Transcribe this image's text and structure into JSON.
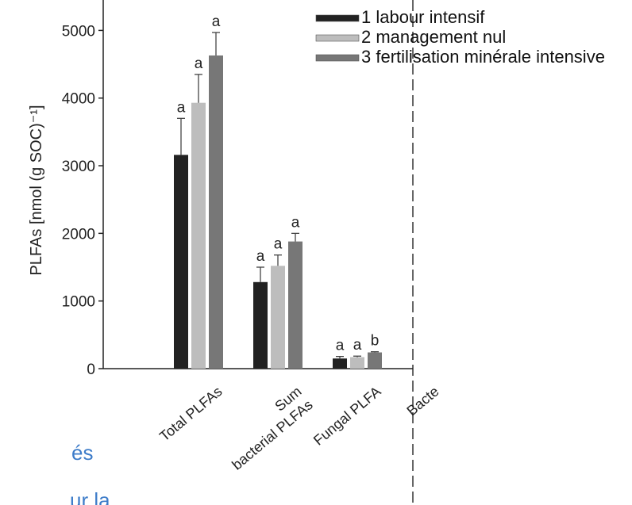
{
  "chart_data": {
    "type": "bar",
    "ylabel": "PLFAs [nmol (g SOC)⁻¹]",
    "categories": [
      [
        "Total PLFAs"
      ],
      [
        "Sum",
        "bacterial PLFAs"
      ],
      [
        "Fungal PLFA"
      ]
    ],
    "series": [
      {
        "name": "1 labour intensif",
        "color": "#222222",
        "values": [
          3160,
          1280,
          150
        ],
        "errors": [
          540,
          220,
          30
        ],
        "letters": [
          "a",
          "a",
          "a"
        ]
      },
      {
        "name": "2 management nul",
        "color": "#bdbdbd",
        "values": [
          3930,
          1520,
          170
        ],
        "errors": [
          420,
          160,
          15
        ],
        "letters": [
          "a",
          "a",
          "a"
        ]
      },
      {
        "name": "3 fertilisation minérale intensive",
        "color": "#777777",
        "values": [
          4630,
          1880,
          240
        ],
        "errors": [
          340,
          120,
          10
        ],
        "letters": [
          "a",
          "a",
          "b"
        ]
      }
    ],
    "ylim": [
      0,
      5450
    ],
    "yticks": [
      0,
      1000,
      2000,
      3000,
      4000,
      5000
    ],
    "annotations": [
      "Bacte",
      "és",
      "ur la"
    ]
  }
}
